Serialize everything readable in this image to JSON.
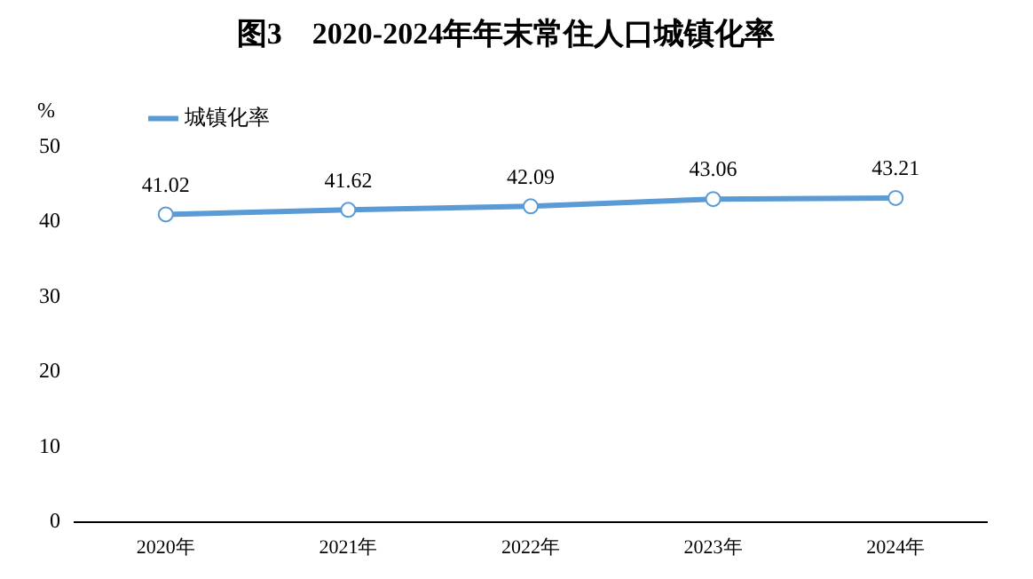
{
  "chart_data": {
    "type": "line",
    "title": "图3　2020-2024年年末常住人口城镇化率",
    "ylabel": "%",
    "categories": [
      "2020年",
      "2021年",
      "2022年",
      "2023年",
      "2024年"
    ],
    "series": [
      {
        "name": "城镇化率",
        "color": "#5b9bd5",
        "values": [
          41.02,
          41.62,
          42.09,
          43.06,
          43.21
        ]
      }
    ],
    "ylim": [
      0,
      50
    ],
    "yticks": [
      0,
      10,
      20,
      30,
      40,
      50
    ],
    "grid": false,
    "legend": "top left",
    "marker": "circle",
    "line_style": "solid",
    "data_labels": true
  }
}
